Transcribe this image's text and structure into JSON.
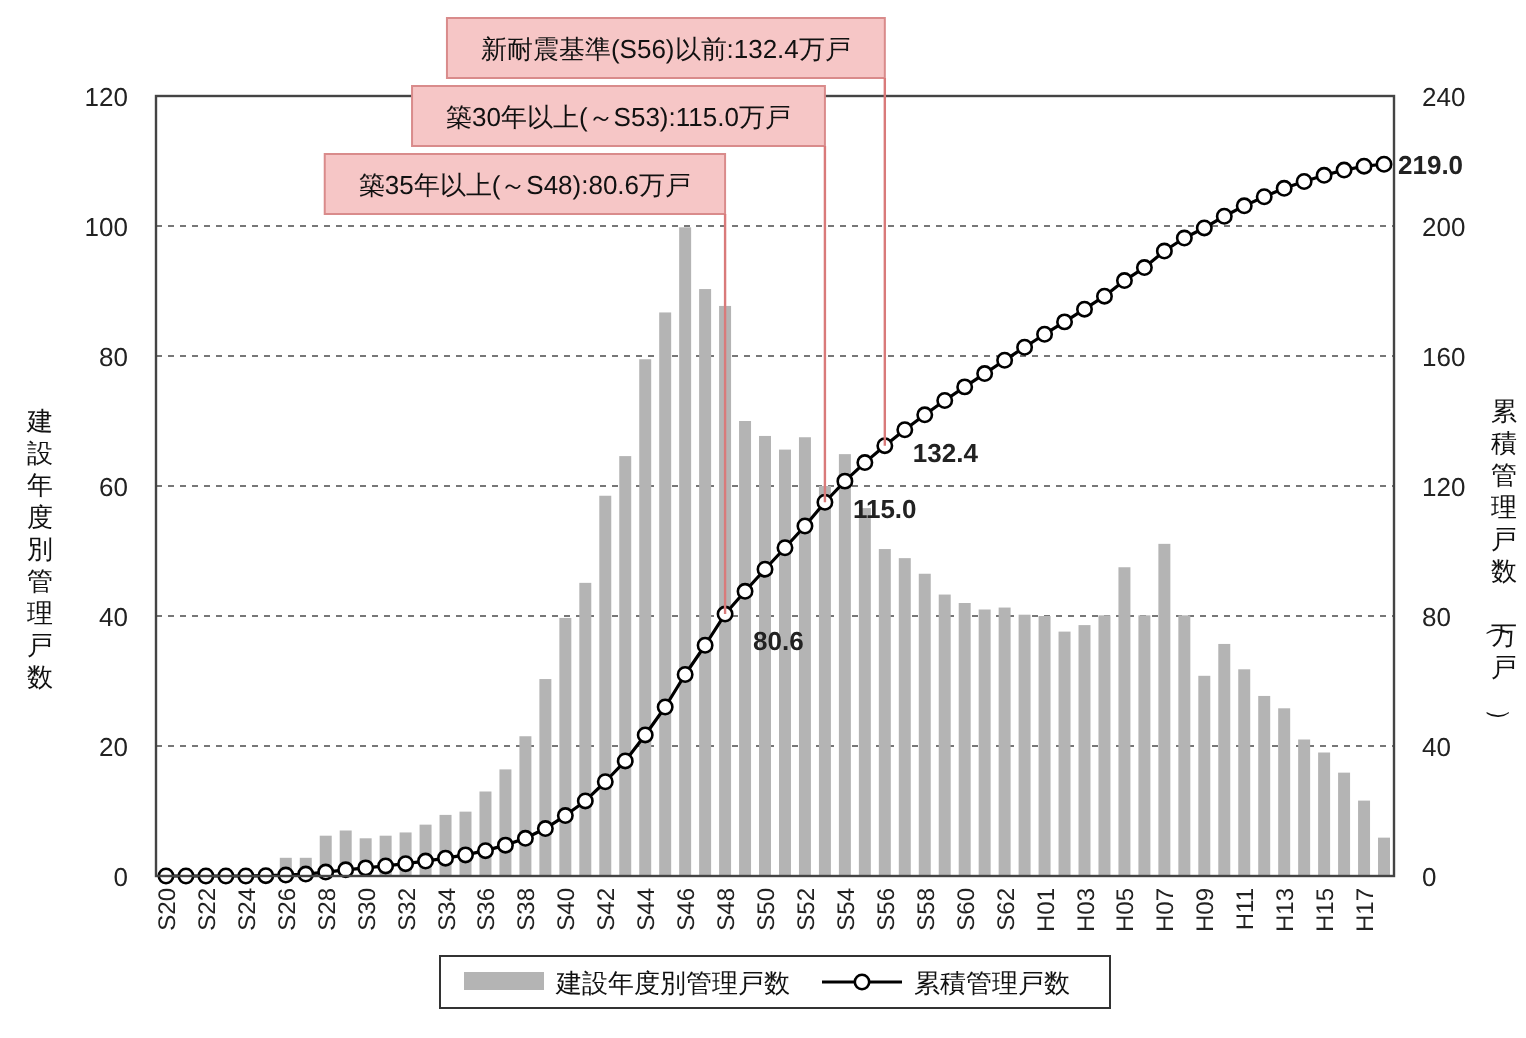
{
  "chart_data": {
    "type": "bar",
    "categories": [
      "S20",
      null,
      "S22",
      null,
      "S24",
      null,
      "S26",
      null,
      "S28",
      null,
      "S30",
      null,
      "S32",
      null,
      "S34",
      null,
      "S36",
      null,
      "S38",
      null,
      "S40",
      null,
      "S42",
      null,
      "S44",
      null,
      "S46",
      null,
      "S48",
      null,
      "S50",
      null,
      "S52",
      null,
      "S54",
      null,
      "S56",
      null,
      "S58",
      null,
      "S60",
      null,
      "S62",
      null,
      "H01",
      null,
      "H03",
      null,
      "H05",
      null,
      "H07",
      null,
      "H09",
      null,
      "H11",
      null,
      "H13",
      null,
      "H15",
      null,
      "H17",
      null
    ],
    "series": [
      {
        "name": "建設年度別管理戸数",
        "color": "#b4b4b4",
        "values": [
          0,
          0,
          0,
          0,
          0,
          0,
          2.8,
          2.8,
          6.2,
          7,
          5.8,
          6.2,
          6.7,
          7.9,
          9.4,
          9.9,
          13,
          16.4,
          21.5,
          30.3,
          39.7,
          45.1,
          58.5,
          64.6,
          79.5,
          86.7,
          99.8,
          90.3,
          87.7,
          70,
          67.7,
          65.6,
          67.5,
          60,
          64.9,
          56.6,
          50.3,
          48.9,
          46.5,
          43.3,
          42,
          41,
          41.3,
          40.2,
          40,
          37.6,
          38.6,
          40.1,
          47.5,
          40.1,
          51.1,
          40.1,
          30.8,
          35.7,
          31.8,
          27.7,
          25.8,
          21,
          19,
          15.9,
          11.6,
          5.9
        ]
      },
      {
        "name": "累積管理戸数",
        "type": "line",
        "axis": "y2",
        "color": "#000000",
        "marker": "circle",
        "line_style": "solid",
        "values": [
          0,
          0,
          0,
          0,
          0,
          0.1,
          0.3,
          0.6,
          1.2,
          1.9,
          2.5,
          3.1,
          3.8,
          4.6,
          5.5,
          6.5,
          7.8,
          9.5,
          11.6,
          14.6,
          18.6,
          23.1,
          29.0,
          35.4,
          43.4,
          52.0,
          62.0,
          71.0,
          80.6,
          87.6,
          94.4,
          101.0,
          107.7,
          115.0,
          121.5,
          127.2,
          132.4,
          137.3,
          141.9,
          146.3,
          150.5,
          154.6,
          158.7,
          162.7,
          166.7,
          170.5,
          174.4,
          178.4,
          183.2,
          187.2,
          192.3,
          196.3,
          199.4,
          203.0,
          206.2,
          209.0,
          211.6,
          213.7,
          215.6,
          217.2,
          218.4,
          219.0
        ],
        "value_labels": [
          null,
          null,
          null,
          null,
          null,
          null,
          null,
          null,
          null,
          null,
          null,
          null,
          null,
          null,
          null,
          null,
          null,
          null,
          null,
          null,
          null,
          null,
          null,
          null,
          null,
          null,
          null,
          null,
          "80.6",
          null,
          null,
          null,
          null,
          "115.0",
          null,
          null,
          "132.4",
          null,
          null,
          null,
          null,
          null,
          null,
          null,
          null,
          null,
          null,
          null,
          null,
          null,
          null,
          null,
          null,
          null,
          null,
          null,
          null,
          null,
          null,
          null,
          null,
          "219.0"
        ]
      }
    ],
    "ylabel": "建設年度別管理戸数",
    "y2label": "累積管理戸数（万戸）",
    "ylim": [
      0,
      120
    ],
    "yticks": [
      0,
      20,
      40,
      60,
      80,
      100,
      120
    ],
    "y2lim": [
      0,
      240
    ],
    "y2ticks": [
      0,
      40,
      80,
      120,
      160,
      200,
      240
    ],
    "grid": "y",
    "legend": "bottom",
    "annotations": [
      "新耐震基準(S56)以前:132.4万戸",
      "築30年以上(～S53):115.0万戸",
      "築35年以上(～S48):80.6万戸"
    ]
  }
}
